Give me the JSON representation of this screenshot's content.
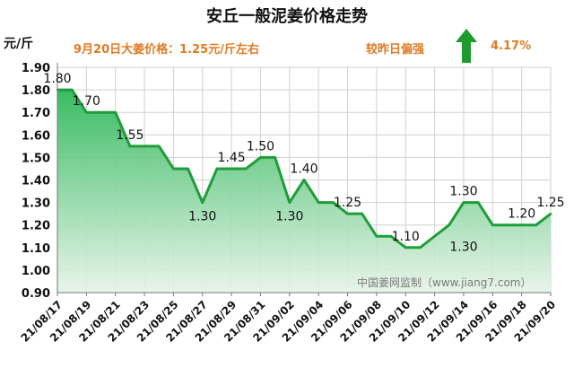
{
  "title": "安丘一般泥姜价格走势",
  "unit": "元/斤",
  "price_note": "9月20日大姜价格：1.25元/斤左右",
  "comparison": {
    "label": "较昨日偏强",
    "change": "4.17%"
  },
  "watermark": "中国姜网监制（www.jiang7.com）",
  "icons": {
    "trend": "up-arrow-icon"
  },
  "colors": {
    "line": "#1f9d3a",
    "fill_top": "#2fb85a",
    "fill_bottom": "#e6f3e8",
    "accent": "#e07a23",
    "arrow": "#1e9a2e"
  },
  "chart_data": {
    "type": "area",
    "x": [
      "21/08/17",
      "21/08/18",
      "21/08/19",
      "21/08/20",
      "21/08/21",
      "21/08/22",
      "21/08/23",
      "21/08/24",
      "21/08/25",
      "21/08/26",
      "21/08/27",
      "21/08/28",
      "21/08/29",
      "21/08/30",
      "21/08/31",
      "21/09/01",
      "21/09/02",
      "21/09/03",
      "21/09/04",
      "21/09/05",
      "21/09/06",
      "21/09/07",
      "21/09/08",
      "21/09/09",
      "21/09/10",
      "21/09/11",
      "21/09/12",
      "21/09/13",
      "21/09/14",
      "21/09/15",
      "21/09/16",
      "21/09/17",
      "21/09/18",
      "21/09/19",
      "21/09/20"
    ],
    "values": [
      1.8,
      1.8,
      1.7,
      1.7,
      1.7,
      1.55,
      1.55,
      1.55,
      1.45,
      1.45,
      1.3,
      1.45,
      1.45,
      1.45,
      1.5,
      1.5,
      1.3,
      1.4,
      1.3,
      1.3,
      1.25,
      1.25,
      1.15,
      1.15,
      1.1,
      1.1,
      1.15,
      1.2,
      1.3,
      1.3,
      1.2,
      1.2,
      1.2,
      1.2,
      1.25
    ],
    "tick_labels": [
      "21/08/17",
      "21/08/19",
      "21/08/21",
      "21/08/23",
      "21/08/25",
      "21/08/27",
      "21/08/29",
      "21/08/31",
      "21/09/02",
      "21/09/04",
      "21/09/06",
      "21/09/08",
      "21/09/10",
      "21/09/12",
      "21/09/14",
      "21/09/16",
      "21/09/18",
      "21/09/20"
    ],
    "yticks": [
      "0.90",
      "1.00",
      "1.10",
      "1.20",
      "1.30",
      "1.40",
      "1.50",
      "1.60",
      "1.70",
      "1.80",
      "1.90"
    ],
    "ylim": [
      0.9,
      1.9
    ],
    "grid": true,
    "annotations": [
      {
        "index": 0,
        "text": "1.80",
        "pos": "above"
      },
      {
        "index": 2,
        "text": "1.70",
        "pos": "above"
      },
      {
        "index": 5,
        "text": "1.55",
        "pos": "above"
      },
      {
        "index": 10,
        "text": "1.30",
        "pos": "below"
      },
      {
        "index": 12,
        "text": "1.45",
        "pos": "above"
      },
      {
        "index": 14,
        "text": "1.50",
        "pos": "above"
      },
      {
        "index": 16,
        "text": "1.30",
        "pos": "below"
      },
      {
        "index": 17,
        "text": "1.40",
        "pos": "above"
      },
      {
        "index": 20,
        "text": "1.25",
        "pos": "above"
      },
      {
        "index": 24,
        "text": "1.10",
        "pos": "above"
      },
      {
        "index": 28,
        "text": "1.30",
        "pos": "above"
      },
      {
        "index": 28,
        "text": "1.30",
        "pos": "below-far"
      },
      {
        "index": 32,
        "text": "1.20",
        "pos": "above"
      },
      {
        "index": 34,
        "text": "1.25",
        "pos": "above"
      }
    ]
  }
}
